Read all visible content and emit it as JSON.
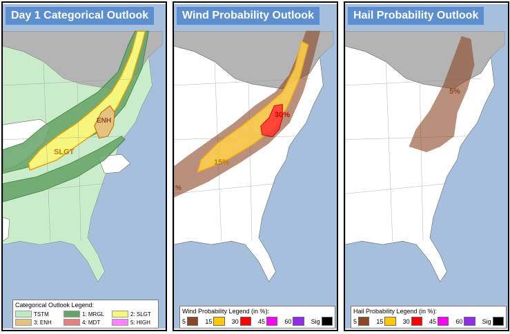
{
  "panels": [
    {
      "title": "Day 1 Categorical Outlook",
      "legend_title": "Categorical Outlook Legend:",
      "legend_items": [
        {
          "label": "TSTM",
          "color": "#c1e9c1"
        },
        {
          "label": "1: MRGL",
          "color": "#66a366"
        },
        {
          "label": "2: SLGT",
          "color": "#f6f67f"
        },
        {
          "label": "3: ENH",
          "color": "#e6c27f"
        },
        {
          "label": "4: MDT",
          "color": "#e67f7f"
        },
        {
          "label": "5: HIGH",
          "color": "#ff7fff"
        }
      ],
      "map_labels": [
        "SLGT",
        "ENH"
      ]
    },
    {
      "title": "Wind Probability Outlook",
      "legend_title": "Wind Probability Legend (in %):",
      "legend_items": [
        {
          "label": "5",
          "color": "#8b4726"
        },
        {
          "label": "15",
          "color": "#ffc800"
        },
        {
          "label": "30",
          "color": "#ff0000"
        },
        {
          "label": "45",
          "color": "#ff00ff"
        },
        {
          "label": "60",
          "color": "#912cee"
        },
        {
          "label": "Sig",
          "color": "#000000"
        }
      ],
      "map_labels": [
        "30%",
        "15%",
        "%"
      ]
    },
    {
      "title": "Hail Probability Outlook",
      "legend_title": "Hail Probability Legend (in %):",
      "legend_items": [
        {
          "label": "5",
          "color": "#8b4726"
        },
        {
          "label": "15",
          "color": "#ffc800"
        },
        {
          "label": "30",
          "color": "#ff0000"
        },
        {
          "label": "45",
          "color": "#ff00ff"
        },
        {
          "label": "60",
          "color": "#912cee"
        },
        {
          "label": "Sig",
          "color": "#000000"
        }
      ],
      "map_labels": [
        "5%"
      ]
    }
  ],
  "colors": {
    "ocean": "#a5bfdd",
    "foreign_land": "#b4b4b4",
    "us_land": "#ffffff",
    "title_bg": "#5b8fd0"
  }
}
